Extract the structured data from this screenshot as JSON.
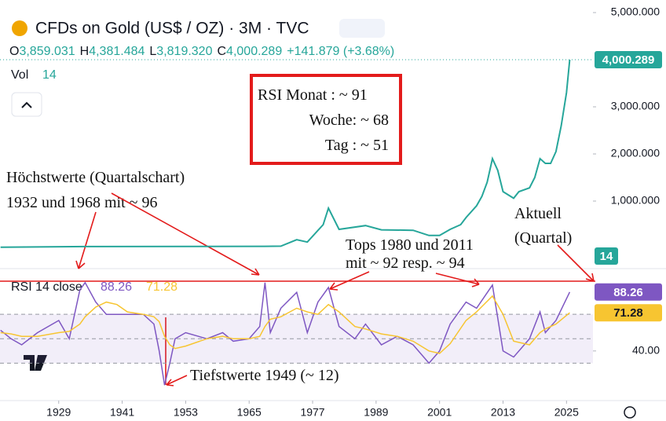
{
  "header": {
    "title": "CFDs on Gold (US$ / OZ) · 3M · TVC",
    "ohlc": [
      {
        "key": "O",
        "value": "3,859.031"
      },
      {
        "key": "H",
        "value": "4,381.484"
      },
      {
        "key": "L",
        "value": "3,819.320"
      },
      {
        "key": "C",
        "value": "4,000.289"
      }
    ],
    "change": "+141.879 (+3.68%)",
    "vol_label": "Vol",
    "vol_value": "14",
    "rsi_label": "RSI 14 close",
    "rsi_value": "88.26",
    "rsi_ma_value": "71.28"
  },
  "annotations": {
    "box": [
      "RSI Monat :  ~ 91",
      "Woche:  ~ 68",
      "Tag :      ~ 51"
    ],
    "highs": [
      "Höchstwerte (Quartalschart)",
      "1932 und 1968 mit ~ 96"
    ],
    "tops": [
      "Tops 1980 und 2011",
      "mit ~ 92 resp. ~ 94"
    ],
    "current": [
      "Aktuell",
      "(Quartal)"
    ],
    "lows": "Tiefstwerte 1949 (~ 12)"
  },
  "chart_data": [
    {
      "type": "line",
      "xlim": [
        1917.9,
        2030
      ],
      "ylim": [
        -400,
        5267
      ],
      "yticks": [
        {
          "value": 1000,
          "label": "1,000.000"
        },
        {
          "value": 2000,
          "label": "2,000.000"
        },
        {
          "value": 3000,
          "label": "3,000.000"
        },
        {
          "value": 5000,
          "label": "5,000.000"
        }
      ],
      "x": [
        1918,
        1934,
        1968,
        1971,
        1974,
        1976,
        1979,
        1980,
        1982,
        1987,
        1990,
        1996,
        1999,
        2001,
        2003,
        2005,
        2006,
        2008,
        2009,
        2010,
        2011,
        2012,
        2013,
        2015,
        2016,
        2018,
        2019,
        2020,
        2021,
        2022,
        2023,
        2024,
        2025,
        2025.6
      ],
      "series": [
        {
          "name": "Gold",
          "color": "#26a69a",
          "values": [
            20,
            35,
            40,
            43,
            180,
            130,
            500,
            850,
            400,
            480,
            390,
            380,
            270,
            270,
            400,
            500,
            650,
            900,
            1100,
            1400,
            1900,
            1650,
            1200,
            1060,
            1200,
            1280,
            1500,
            1900,
            1800,
            1800,
            2050,
            2600,
            3300,
            4000.289
          ]
        }
      ]
    },
    {
      "type": "line",
      "xlim": [
        1917.9,
        2030
      ],
      "ylim": [
        0,
        105.5
      ],
      "yticks": [
        {
          "value": 40,
          "label": "40.00"
        }
      ],
      "band": [
        30,
        70
      ],
      "midline": 50,
      "xticks": [
        1929,
        1941,
        1953,
        1965,
        1977,
        1989,
        2001,
        2013,
        2025
      ],
      "x": [
        1918,
        1920,
        1922,
        1925,
        1929,
        1931,
        1933,
        1934,
        1936,
        1938,
        1940,
        1942,
        1945,
        1947,
        1948,
        1949,
        1950,
        1951,
        1953,
        1957,
        1960,
        1962,
        1965,
        1967,
        1968,
        1969,
        1971,
        1974,
        1976,
        1978,
        1980,
        1982,
        1985,
        1987,
        1990,
        1993,
        1996,
        1999,
        2001,
        2003,
        2006,
        2008,
        2011,
        2013,
        2015,
        2018,
        2020,
        2021,
        2023,
        2025.6
      ],
      "series": [
        {
          "name": "RSI",
          "color": "#7e57c2",
          "values": [
            57,
            50,
            45,
            55,
            65,
            50,
            90,
            96,
            80,
            70,
            70,
            70,
            70,
            62,
            40,
            12,
            30,
            50,
            55,
            50,
            55,
            48,
            50,
            60,
            96,
            55,
            75,
            88,
            55,
            80,
            92,
            60,
            50,
            62,
            45,
            52,
            45,
            30,
            40,
            62,
            80,
            75,
            94,
            40,
            35,
            50,
            72,
            55,
            65,
            88.26
          ]
        },
        {
          "name": "RSI MA",
          "color": "#f7c531",
          "values": [
            55,
            54,
            52,
            52,
            55,
            56,
            62,
            68,
            76,
            80,
            78,
            72,
            70,
            68,
            64,
            52,
            45,
            42,
            44,
            50,
            52,
            50,
            50,
            52,
            60,
            66,
            68,
            75,
            72,
            70,
            78,
            72,
            60,
            58,
            54,
            52,
            48,
            40,
            38,
            46,
            65,
            72,
            85,
            70,
            48,
            45,
            55,
            58,
            62,
            71.28
          ]
        }
      ]
    }
  ]
}
